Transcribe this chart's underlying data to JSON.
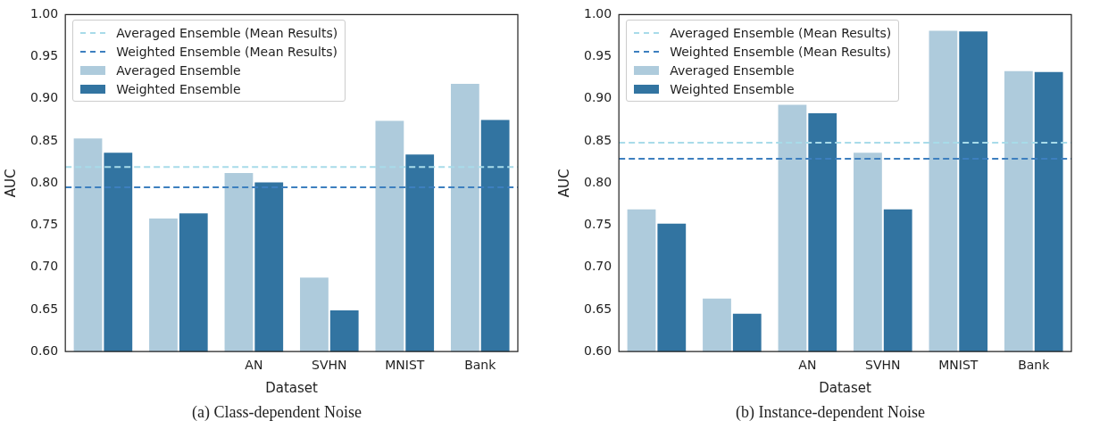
{
  "chart_data": [
    {
      "type": "bar",
      "xlabel": "Dataset",
      "ylabel": "AUC",
      "categories": [
        null,
        null,
        "AN",
        "SVHN",
        "MNIST",
        "Bank"
      ],
      "series": [
        {
          "name": "Averaged Ensemble",
          "color": "#aecbdc",
          "values": [
            0.854,
            0.759,
            0.813,
            0.689,
            0.875,
            0.919
          ]
        },
        {
          "name": "Weighted Ensemble",
          "color": "#3274a1",
          "values": [
            0.837,
            0.765,
            0.802,
            0.65,
            0.835,
            0.876
          ]
        }
      ],
      "ylim": [
        0.6,
        1.0
      ],
      "yticks": [
        {
          "value": 0.6,
          "label": "0.60"
        },
        {
          "value": 0.65,
          "label": "0.65"
        },
        {
          "value": 0.7,
          "label": "0.70"
        },
        {
          "value": 0.75,
          "label": "0.75"
        },
        {
          "value": 0.8,
          "label": "0.80"
        },
        {
          "value": 0.85,
          "label": "0.85"
        },
        {
          "value": 0.9,
          "label": "0.90"
        },
        {
          "value": 0.95,
          "label": "0.95"
        },
        {
          "value": 1.0,
          "label": "1.00"
        }
      ],
      "ref_lines": [
        {
          "axis": "y",
          "value": 0.819,
          "label": "Averaged Ensemble (Mean Results)",
          "color": "#a8dbe9",
          "line_style": "dashed"
        },
        {
          "axis": "y",
          "value": 0.795,
          "label": "Weighted Ensemble (Mean Results)",
          "color": "#3d7fbf",
          "line_style": "dashed"
        }
      ],
      "grid": false,
      "legend": "top left",
      "annotations": [
        "(a) Class-dependent Noise"
      ]
    },
    {
      "type": "bar",
      "xlabel": "Dataset",
      "ylabel": "AUC",
      "categories": [
        null,
        null,
        "AN",
        "SVHN",
        "MNIST",
        "Bank"
      ],
      "series": [
        {
          "name": "Averaged Ensemble",
          "color": "#aecbdc",
          "values": [
            0.77,
            0.664,
            0.894,
            0.837,
            0.982,
            0.934
          ]
        },
        {
          "name": "Weighted Ensemble",
          "color": "#3274a1",
          "values": [
            0.753,
            0.646,
            0.884,
            0.77,
            0.981,
            0.933
          ]
        }
      ],
      "ylim": [
        0.6,
        1.0
      ],
      "yticks": [
        {
          "value": 0.6,
          "label": "0.60"
        },
        {
          "value": 0.65,
          "label": "0.65"
        },
        {
          "value": 0.7,
          "label": "0.70"
        },
        {
          "value": 0.75,
          "label": "0.75"
        },
        {
          "value": 0.8,
          "label": "0.80"
        },
        {
          "value": 0.85,
          "label": "0.85"
        },
        {
          "value": 0.9,
          "label": "0.90"
        },
        {
          "value": 0.95,
          "label": "0.95"
        },
        {
          "value": 1.0,
          "label": "1.00"
        }
      ],
      "ref_lines": [
        {
          "axis": "y",
          "value": 0.848,
          "label": "Averaged Ensemble (Mean Results)",
          "color": "#a8dbe9",
          "line_style": "dashed"
        },
        {
          "axis": "y",
          "value": 0.829,
          "label": "Weighted Ensemble (Mean Results)",
          "color": "#3d7fbf",
          "line_style": "dashed"
        }
      ],
      "grid": false,
      "legend": "top left",
      "annotations": [
        "(b) Instance-dependent Noise"
      ]
    }
  ]
}
